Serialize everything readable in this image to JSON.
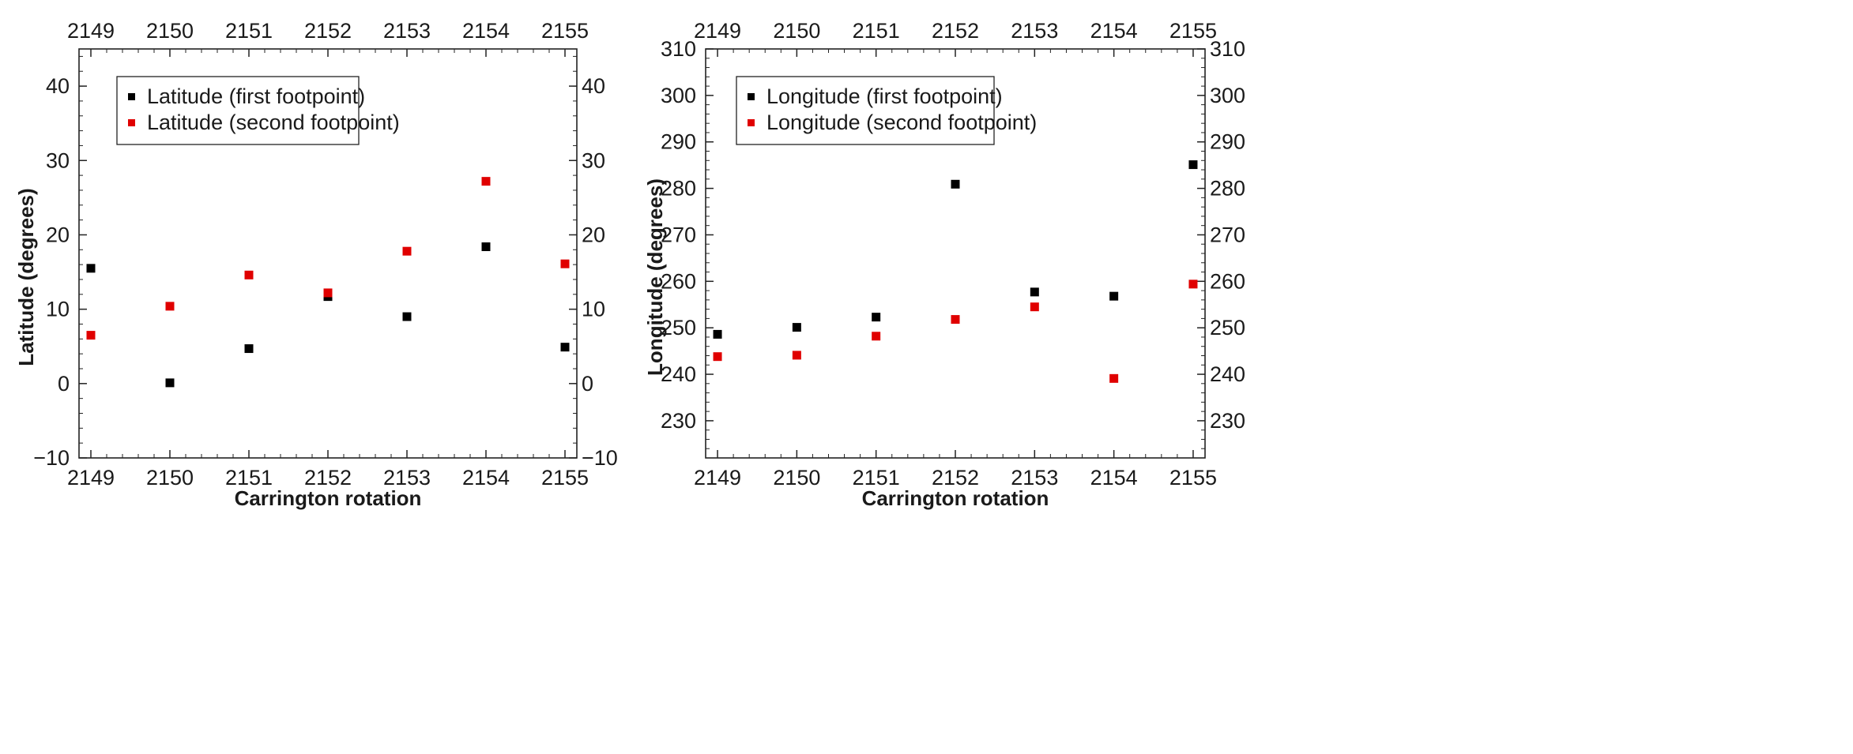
{
  "chart_data": [
    {
      "type": "scatter",
      "xlabel": "Carrington rotation",
      "ylabel": "Latitude (degrees)",
      "x": [
        2149,
        2150,
        2151,
        2152,
        2153,
        2154,
        2155
      ],
      "x_ticks": [
        "2149",
        "2150",
        "2151",
        "2152",
        "2153",
        "2154",
        "2155"
      ],
      "xlim": [
        2148.85,
        2155.15
      ],
      "ylim": [
        -10,
        45
      ],
      "y_ticks": [
        -10,
        0,
        10,
        20,
        30,
        40
      ],
      "y_tick_labels": [
        "−10",
        "0",
        "10",
        "20",
        "30",
        "40"
      ],
      "legend_position": "top-left",
      "grid": false,
      "series": [
        {
          "name": "Latitude (first footpoint)",
          "color": "#000000",
          "values": [
            15.5,
            0.1,
            4.7,
            11.7,
            9.0,
            18.4,
            4.9
          ]
        },
        {
          "name": "Latitude (second footpoint)",
          "color": "#e00000",
          "values": [
            6.5,
            10.4,
            14.6,
            12.2,
            17.8,
            27.2,
            16.1
          ]
        }
      ]
    },
    {
      "type": "scatter",
      "xlabel": "Carrington rotation",
      "ylabel": "Longitude (degrees)",
      "x": [
        2149,
        2150,
        2151,
        2152,
        2153,
        2154,
        2155
      ],
      "x_ticks": [
        "2149",
        "2150",
        "2151",
        "2152",
        "2153",
        "2154",
        "2155"
      ],
      "xlim": [
        2148.85,
        2155.15
      ],
      "ylim": [
        222,
        310
      ],
      "y_ticks": [
        230,
        240,
        250,
        260,
        270,
        280,
        290,
        300,
        310
      ],
      "y_tick_labels": [
        "230",
        "240",
        "250",
        "260",
        "270",
        "280",
        "290",
        "300",
        "310"
      ],
      "legend_position": "top-left",
      "grid": false,
      "series": [
        {
          "name": "Longitude (first footpoint)",
          "color": "#000000",
          "values": [
            248.6,
            250.1,
            252.3,
            280.9,
            257.7,
            256.8,
            285.1
          ]
        },
        {
          "name": "Longitude (second footpoint)",
          "color": "#e00000",
          "values": [
            243.8,
            244.1,
            248.2,
            251.8,
            254.5,
            239.1,
            259.4
          ]
        }
      ]
    }
  ]
}
